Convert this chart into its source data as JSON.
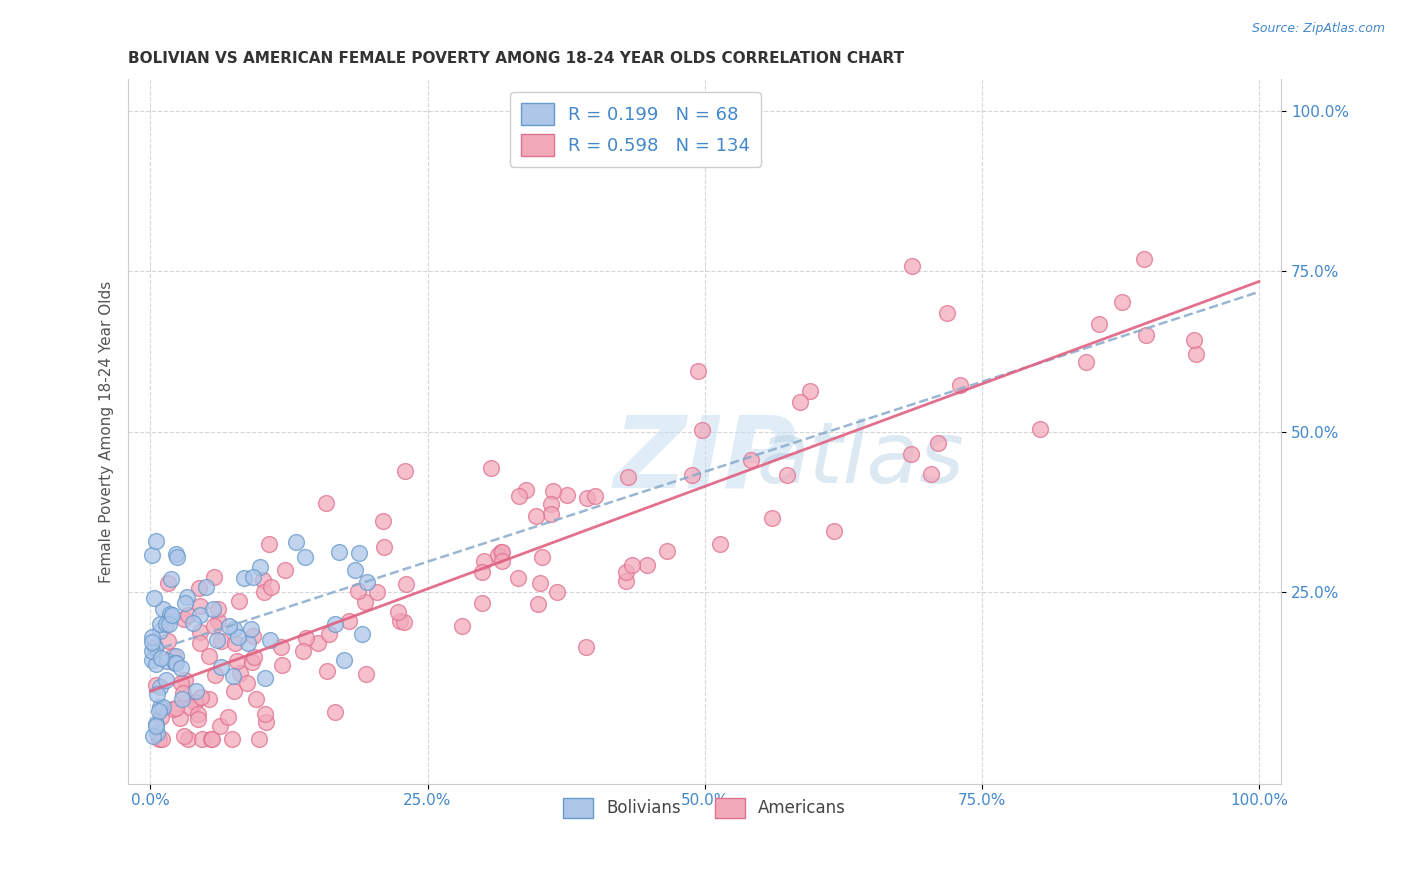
{
  "title": "BOLIVIAN VS AMERICAN FEMALE POVERTY AMONG 18-24 YEAR OLDS CORRELATION CHART",
  "source": "Source: ZipAtlas.com",
  "ylabel": "Female Poverty Among 18-24 Year Olds",
  "xlim": [
    -0.02,
    1.02
  ],
  "ylim": [
    -0.05,
    1.05
  ],
  "xticks": [
    0.0,
    0.25,
    0.5,
    0.75,
    1.0
  ],
  "xtick_labels": [
    "0.0%",
    "25.0%",
    "50.0%",
    "75.0%",
    "100.0%"
  ],
  "yticks": [
    0.25,
    0.5,
    0.75,
    1.0
  ],
  "ytick_labels": [
    "25.0%",
    "50.0%",
    "75.0%",
    "100.0%"
  ],
  "bolivians_R": 0.199,
  "bolivians_N": 68,
  "americans_R": 0.598,
  "americans_N": 134,
  "bolivian_color": "#aec6e8",
  "american_color": "#f2aabb",
  "bolivian_edge_color": "#6699cc",
  "american_edge_color": "#e07090",
  "bolivian_line_color": "#88aacc",
  "american_line_color": "#e06080",
  "background_color": "#ffffff",
  "grid_color": "#cccccc",
  "title_color": "#333333",
  "axis_label_color": "#555555",
  "tick_color": "#4488cc",
  "legend_fontsize": 13,
  "title_fontsize": 11,
  "ylabel_fontsize": 11,
  "watermark_color": "#c8ddf0",
  "source_color": "#4488cc"
}
